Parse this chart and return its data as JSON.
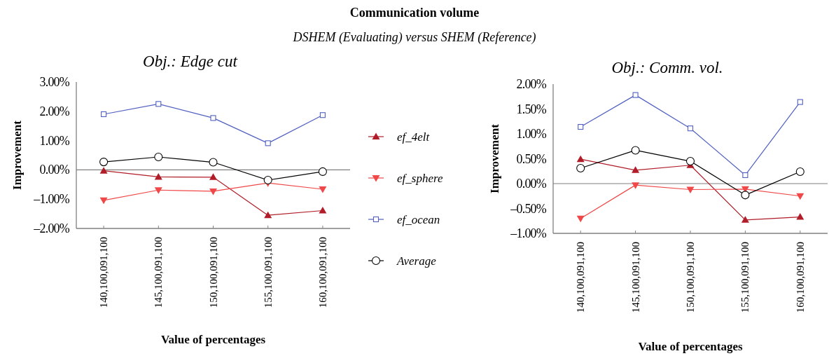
{
  "chart_data": [
    {
      "type": "other",
      "title": "Communication volume",
      "subtitle": "DSHEM (Evaluating) versus SHEM (Reference)"
    },
    {
      "type": "line",
      "title": "Obj.: Edge cut",
      "xlabel": "Value of percentages",
      "ylabel": "Improvement",
      "categories": [
        "140,100,091,100",
        "145,100,091,100",
        "150,100,091,100",
        "155,100,091,100",
        "160,100,091,100"
      ],
      "series": [
        {
          "name": "ef_4elt",
          "color": "#b01c28",
          "marker": "triangle",
          "values": [
            -0.03,
            -0.24,
            -0.25,
            -1.55,
            -1.39
          ]
        },
        {
          "name": "ef_sphere",
          "color": "#f04848",
          "marker": "triangle-down",
          "values": [
            -1.04,
            -0.69,
            -0.73,
            -0.45,
            -0.66
          ]
        },
        {
          "name": "ef_ocean",
          "color": "#5060c0",
          "marker": "square",
          "values": [
            1.9,
            2.25,
            1.77,
            0.91,
            1.87
          ]
        },
        {
          "name": "Average",
          "color": "#000000",
          "marker": "circle",
          "values": [
            0.27,
            0.44,
            0.26,
            -0.35,
            -0.06
          ]
        }
      ],
      "ylim": [
        -2,
        3
      ],
      "yticks": [
        {
          "value": 3,
          "label": "3.00%"
        },
        {
          "value": 2,
          "label": "2.00%"
        },
        {
          "value": 1,
          "label": "1.00%"
        },
        {
          "value": 0,
          "label": "0.00%"
        },
        {
          "value": -1,
          "label": "–1.00%"
        },
        {
          "value": -2,
          "label": "–2.00%"
        }
      ],
      "ref_lines": [
        {
          "axis": "y",
          "value": 0,
          "color": "#808080"
        }
      ],
      "legend": "right",
      "grid": false
    },
    {
      "type": "line",
      "title": "Obj.: Comm. vol.",
      "xlabel": "Value of percentages",
      "ylabel": "Improvement",
      "categories": [
        "140,100,091,100",
        "145,100,091,100",
        "150,100,091,100",
        "155,100,091,100",
        "160,100,091,100"
      ],
      "series": [
        {
          "color": "#b01c28",
          "marker": "triangle",
          "values": [
            0.49,
            0.27,
            0.37,
            -0.73,
            -0.67
          ]
        },
        {
          "color": "#f04848",
          "marker": "triangle-down",
          "values": [
            -0.7,
            -0.03,
            -0.12,
            -0.11,
            -0.25
          ]
        },
        {
          "color": "#5060c0",
          "marker": "square",
          "values": [
            1.14,
            1.78,
            1.11,
            0.17,
            1.64
          ]
        },
        {
          "color": "#000000",
          "marker": "circle",
          "values": [
            0.31,
            0.67,
            0.45,
            -0.23,
            0.24
          ]
        }
      ],
      "ylim": [
        -1,
        2
      ],
      "yticks": [
        {
          "value": 2,
          "label": "2.00%"
        },
        {
          "value": 1.5,
          "label": "1.50%"
        },
        {
          "value": 1,
          "label": "1.00%"
        },
        {
          "value": 0.5,
          "label": "0.50%"
        },
        {
          "value": 0,
          "label": "0.00%"
        },
        {
          "value": -0.5,
          "label": "–0.50%"
        },
        {
          "value": -1,
          "label": "–1.00%"
        }
      ],
      "ref_lines": [
        {
          "axis": "y",
          "value": 0,
          "color": "#808080"
        }
      ],
      "legend": false,
      "grid": false
    }
  ]
}
